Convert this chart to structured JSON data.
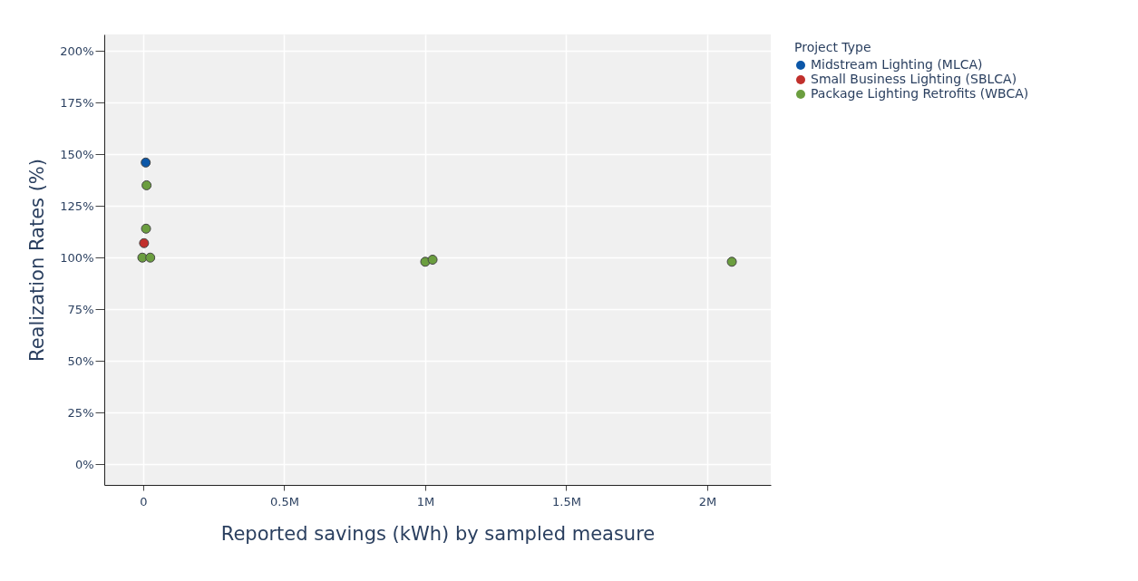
{
  "chart_data": {
    "type": "scatter",
    "xlabel": "Reported savings (kWh) by sampled measure",
    "ylabel": "Realization Rates (%)",
    "legend_title": "Project Type",
    "series": [
      {
        "name": "Midstream Lighting (MLCA)",
        "color": "#0b57a8",
        "x": [
          9000
        ],
        "values": [
          146
        ]
      },
      {
        "name": "Small Business Lighting (SBLCA)",
        "color": "#c1302c",
        "x": [
          3000
        ],
        "values": [
          107
        ]
      },
      {
        "name": "Package Lighting Retrofits (WBCA)",
        "color": "#6b9e3f",
        "x": [
          12000,
          10000,
          -3000,
          25000,
          1000000,
          1026000,
          2087000
        ],
        "values": [
          135,
          114,
          100,
          100,
          98,
          99,
          98
        ]
      }
    ],
    "xlim": [
      -138000,
      2225000
    ],
    "ylim": [
      -10,
      208
    ],
    "xticks": [
      0,
      {
        "value": 500000,
        "label": "0.5M"
      },
      {
        "value": 1000000,
        "label": "1M"
      },
      {
        "value": 1500000,
        "label": "1.5M"
      },
      {
        "value": 2000000,
        "label": "2M"
      }
    ],
    "yticks": [
      {
        "value": 0,
        "label": "0%"
      },
      {
        "value": 25,
        "label": "25%"
      },
      {
        "value": 50,
        "label": "50%"
      },
      {
        "value": 75,
        "label": "75%"
      },
      {
        "value": 100,
        "label": "100%"
      },
      {
        "value": 125,
        "label": "125%"
      },
      {
        "value": 150,
        "label": "150%"
      },
      {
        "value": 175,
        "label": "175%"
      },
      {
        "value": 200,
        "label": "200%"
      }
    ],
    "grid": true,
    "legend": "top right",
    "marker": "circle"
  }
}
